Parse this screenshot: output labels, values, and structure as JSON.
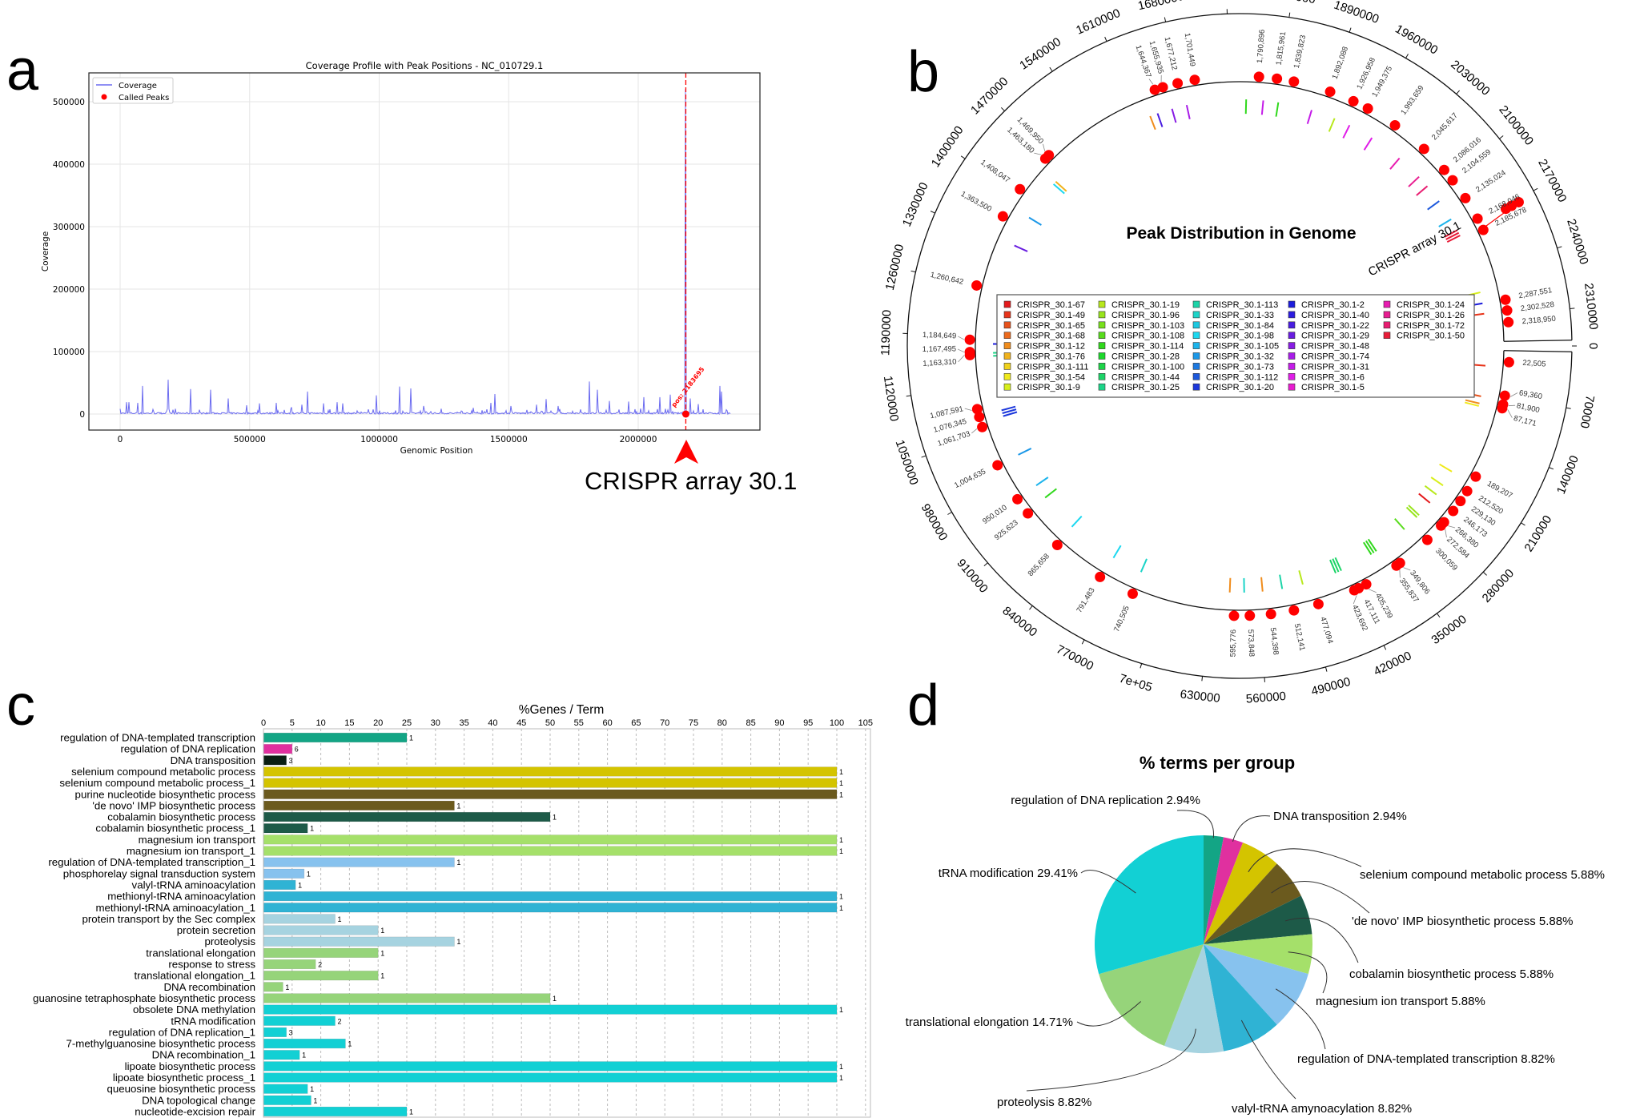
{
  "panels": {
    "a": "a",
    "b": "b",
    "c": "c",
    "d": "d"
  },
  "chart_data": [
    {
      "panel": "a",
      "type": "line",
      "title": "Coverage Profile with Peak Positions - NC_010729.1",
      "xlabel": "Genomic Position",
      "ylabel": "Coverage",
      "xlim": [
        -120000,
        2470000
      ],
      "ylim": [
        -26000,
        540000
      ],
      "xticks": [
        0,
        500000,
        1000000,
        1500000,
        2000000
      ],
      "yticks": [
        0,
        100000,
        200000,
        300000,
        400000,
        500000
      ],
      "grid": true,
      "legend": {
        "placement": "top-left",
        "entries": [
          "Coverage",
          "Called Peaks"
        ]
      },
      "colors": {
        "coverage": "#6b6bf0",
        "peaks": "#ff0000"
      },
      "genome_end": 2355000,
      "coverage_spikes": [
        [
          26000,
          19000
        ],
        [
          34000,
          19000
        ],
        [
          68000,
          18000
        ],
        [
          87000,
          45000
        ],
        [
          185000,
          55000
        ],
        [
          272000,
          40000
        ],
        [
          350000,
          39000
        ],
        [
          416000,
          25000
        ],
        [
          488000,
          14000
        ],
        [
          537000,
          17000
        ],
        [
          603000,
          18000
        ],
        [
          662000,
          11000
        ],
        [
          703000,
          15000
        ],
        [
          724000,
          36000
        ],
        [
          786000,
          17000
        ],
        [
          837000,
          19000
        ],
        [
          860000,
          17000
        ],
        [
          990000,
          30000
        ],
        [
          1079000,
          44000
        ],
        [
          1123000,
          41000
        ],
        [
          1172000,
          13000
        ],
        [
          1363000,
          10000
        ],
        [
          1431000,
          18000
        ],
        [
          1446000,
          32000
        ],
        [
          1510000,
          13000
        ],
        [
          1607000,
          15000
        ],
        [
          1643000,
          24000
        ],
        [
          1690000,
          13000
        ],
        [
          1811000,
          52000
        ],
        [
          1843000,
          39000
        ],
        [
          1890000,
          21000
        ],
        [
          1962000,
          20000
        ],
        [
          2021000,
          27000
        ],
        [
          2085000,
          27000
        ],
        [
          2125000,
          31000
        ],
        [
          2183695,
          520000
        ],
        [
          2200000,
          25000
        ],
        [
          2231000,
          16000
        ],
        [
          2316000,
          45000
        ],
        [
          2321000,
          36000
        ]
      ],
      "called_peaks": [
        [
          2183695,
          0
        ]
      ],
      "peak_annotation": "pos: 2183695",
      "arrow_annotation": "CRISPR array 30.1"
    },
    {
      "panel": "b",
      "type": "circular",
      "title": "Peak Distribution in Genome",
      "annotation": "CRISPR array 30.1",
      "crispr_array_pos": 2183695,
      "genome_length": 2352000,
      "axis_ticks": [
        "0",
        "70000",
        "140000",
        "210000",
        "280000",
        "350000",
        "420000",
        "490000",
        "560000",
        "630000",
        "7e+05",
        "770000",
        "840000",
        "910000",
        "980000",
        "1050000",
        "1120000",
        "1190000",
        "1260000",
        "1330000",
        "1400000",
        "1470000",
        "1540000",
        "1610000",
        "1680000",
        "1750000",
        "1820000",
        "1890000",
        "1960000",
        "2030000",
        "2100000",
        "2170000",
        "2240000",
        "2310000"
      ],
      "peak_color": "#ff0000",
      "peaks": [
        "22,505",
        "69,360",
        "81,900",
        "87,171",
        "189,207",
        "212,520",
        "229,130",
        "246,173",
        "266,380",
        "272,584",
        "300,059",
        "349,806",
        "355,837",
        "405,239",
        "417,111",
        "423,692",
        "477,094",
        "512,141",
        "544,398",
        "573,848",
        "595,776",
        "740,505",
        "791,483",
        "865,658",
        "925,623",
        "950,010",
        "1,004,635",
        "1,061,703",
        "1,076,345",
        "1,087,591",
        "1,163,310",
        "1,167,495",
        "1,184,649",
        "1,260,642",
        "1,363,500",
        "1,408,047",
        "1,463,180",
        "1,469,950",
        "1,644,367",
        "1,655,935",
        "1,677,212",
        "1,701,449",
        "1,790,896",
        "1,815,961",
        "1,839,823",
        "1,892,088",
        "1,926,958",
        "1,949,375",
        "1,993,659",
        "2,045,617",
        "2,086,016",
        "2,104,559",
        "2,135,024",
        "2,168,046",
        "2,185,678",
        "2,287,551",
        "2,302,528",
        "2,318,950"
      ],
      "legend": {
        "placement": "center",
        "items": [
          {
            "label": "CRISPR_30.1-67",
            "color": "#e41a1c"
          },
          {
            "label": "CRISPR_30.1-49",
            "color": "#e8341a"
          },
          {
            "label": "CRISPR_30.1-65",
            "color": "#e8521b"
          },
          {
            "label": "CRISPR_30.1-68",
            "color": "#ec6a1c"
          },
          {
            "label": "CRISPR_30.1-12",
            "color": "#f08c1c"
          },
          {
            "label": "CRISPR_30.1-76",
            "color": "#f0b21c"
          },
          {
            "label": "CRISPR_30.1-111",
            "color": "#f0d21c"
          },
          {
            "label": "CRISPR_30.1-54",
            "color": "#f0ea1c"
          },
          {
            "label": "CRISPR_30.1-9",
            "color": "#d8ef1c"
          },
          {
            "label": "CRISPR_30.1-19",
            "color": "#b8e81c"
          },
          {
            "label": "CRISPR_30.1-96",
            "color": "#98e41c"
          },
          {
            "label": "CRISPR_30.1-103",
            "color": "#78e01c"
          },
          {
            "label": "CRISPR_30.1-108",
            "color": "#58dc1c"
          },
          {
            "label": "CRISPR_30.1-114",
            "color": "#30d81c"
          },
          {
            "label": "CRISPR_30.1-28",
            "color": "#1cd82c"
          },
          {
            "label": "CRISPR_30.1-100",
            "color": "#1cd448"
          },
          {
            "label": "CRISPR_30.1-44",
            "color": "#1cd468"
          },
          {
            "label": "CRISPR_30.1-25",
            "color": "#1cd488"
          },
          {
            "label": "CRISPR_30.1-113",
            "color": "#1cd4a8"
          },
          {
            "label": "CRISPR_30.1-33",
            "color": "#1cd4c8"
          },
          {
            "label": "CRISPR_30.1-84",
            "color": "#1cc8e0"
          },
          {
            "label": "CRISPR_30.1-98",
            "color": "#1cd8f0"
          },
          {
            "label": "CRISPR_30.1-105",
            "color": "#1cb4ec"
          },
          {
            "label": "CRISPR_30.1-32",
            "color": "#1c98e8"
          },
          {
            "label": "CRISPR_30.1-73",
            "color": "#1c78e0"
          },
          {
            "label": "CRISPR_30.1-112",
            "color": "#1c58dc"
          },
          {
            "label": "CRISPR_30.1-20",
            "color": "#1c38dc"
          },
          {
            "label": "CRISPR_30.1-2",
            "color": "#1c1cdc"
          },
          {
            "label": "CRISPR_30.1-40",
            "color": "#2c1ce0"
          },
          {
            "label": "CRISPR_30.1-22",
            "color": "#481ce0"
          },
          {
            "label": "CRISPR_30.1-29",
            "color": "#681ce0"
          },
          {
            "label": "CRISPR_30.1-48",
            "color": "#881ce4"
          },
          {
            "label": "CRISPR_30.1-74",
            "color": "#a81ce8"
          },
          {
            "label": "CRISPR_30.1-31",
            "color": "#c41ce8"
          },
          {
            "label": "CRISPR_30.1-6",
            "color": "#e01ce8"
          },
          {
            "label": "CRISPR_30.1-5",
            "color": "#e81cd0"
          },
          {
            "label": "CRISPR_30.1-24",
            "color": "#e81cb0"
          },
          {
            "label": "CRISPR_30.1-26",
            "color": "#e81c90"
          },
          {
            "label": "CRISPR_30.1-72",
            "color": "#e81c70"
          },
          {
            "label": "CRISPR_30.1-50",
            "color": "#e81c38"
          }
        ]
      },
      "crispr_marks": [
        {
          "pos": 30000,
          "color": "#e8341a",
          "n": 1
        },
        {
          "pos": 77000,
          "color": "#e8521b",
          "n": 1
        },
        {
          "pos": 88000,
          "color": "#f08c1c",
          "n": 1
        },
        {
          "pos": 92000,
          "color": "#f0ea1c",
          "n": 1
        },
        {
          "pos": 200000,
          "color": "#f0ea1c",
          "n": 1
        },
        {
          "pos": 225000,
          "color": "#d8ef1c",
          "n": 1
        },
        {
          "pos": 242000,
          "color": "#b8e81c",
          "n": 1
        },
        {
          "pos": 258000,
          "color": "#e41a1c",
          "n": 1
        },
        {
          "pos": 283000,
          "color": "#98e41c",
          "n": 2
        },
        {
          "pos": 314000,
          "color": "#58dc1c",
          "n": 1
        },
        {
          "pos": 368000,
          "color": "#30d81c",
          "n": 3
        },
        {
          "pos": 429000,
          "color": "#1cd468",
          "n": 3
        },
        {
          "pos": 491000,
          "color": "#b8e81c",
          "n": 1
        },
        {
          "pos": 523000,
          "color": "#1cd4a8",
          "n": 1
        },
        {
          "pos": 553000,
          "color": "#f08c1c",
          "n": 1
        },
        {
          "pos": 581000,
          "color": "#1cd4c8",
          "n": 1
        },
        {
          "pos": 603000,
          "color": "#f08c1c",
          "n": 1
        },
        {
          "pos": 742000,
          "color": "#1cd4c8",
          "n": 1
        },
        {
          "pos": 789000,
          "color": "#1cd8f0",
          "n": 1
        },
        {
          "pos": 868000,
          "color": "#1cd8f0",
          "n": 1
        },
        {
          "pos": 928000,
          "color": "#30d81c",
          "n": 1
        },
        {
          "pos": 951000,
          "color": "#1cb4ec",
          "n": 1
        },
        {
          "pos": 1005000,
          "color": "#1c98e8",
          "n": 1
        },
        {
          "pos": 1068000,
          "color": "#1c38dc",
          "n": 3
        },
        {
          "pos": 1161000,
          "color": "#1cd488",
          "n": 2
        },
        {
          "pos": 1179000,
          "color": "#1c1cdc",
          "n": 1
        },
        {
          "pos": 1254000,
          "color": "#1cd448",
          "n": 1
        },
        {
          "pos": 1333000,
          "color": "#681ce0",
          "n": 1
        },
        {
          "pos": 1381000,
          "color": "#1c98e8",
          "n": 1
        },
        {
          "pos": 1444000,
          "color": "#1cd8f0",
          "n": 1
        },
        {
          "pos": 1449000,
          "color": "#f0b21c",
          "n": 1
        },
        {
          "pos": 1625000,
          "color": "#f08c1c",
          "n": 1
        },
        {
          "pos": 1637000,
          "color": "#481ce0",
          "n": 1
        },
        {
          "pos": 1660000,
          "color": "#881ce4",
          "n": 1
        },
        {
          "pos": 1683000,
          "color": "#a81ce8",
          "n": 1
        },
        {
          "pos": 1774000,
          "color": "#30d81c",
          "n": 1
        },
        {
          "pos": 1800000,
          "color": "#c41ce8",
          "n": 1
        },
        {
          "pos": 1823000,
          "color": "#30d81c",
          "n": 1
        },
        {
          "pos": 1875000,
          "color": "#c41ce8",
          "n": 1
        },
        {
          "pos": 1912000,
          "color": "#b8e81c",
          "n": 1
        },
        {
          "pos": 1937000,
          "color": "#e01ce8",
          "n": 1
        },
        {
          "pos": 1976000,
          "color": "#e01ce8",
          "n": 1
        },
        {
          "pos": 2028000,
          "color": "#e81cb0",
          "n": 1
        },
        {
          "pos": 2069000,
          "color": "#e81c90",
          "n": 1
        },
        {
          "pos": 2088000,
          "color": "#e81c70",
          "n": 1
        },
        {
          "pos": 2117000,
          "color": "#1c58dc",
          "n": 1
        },
        {
          "pos": 2150000,
          "color": "#1cb4ec",
          "n": 1
        },
        {
          "pos": 2169000,
          "color": "#e81c38",
          "n": 3
        },
        {
          "pos": 2270000,
          "color": "#d8ef1c",
          "n": 1
        },
        {
          "pos": 2287000,
          "color": "#1c1cdc",
          "n": 1
        },
        {
          "pos": 2303000,
          "color": "#e8341a",
          "n": 1
        }
      ]
    },
    {
      "panel": "c",
      "type": "bar",
      "orientation": "horizontal",
      "title": "%Genes / Term",
      "xlim": [
        0,
        105
      ],
      "xticks": [
        0,
        5,
        10,
        15,
        20,
        25,
        30,
        35,
        40,
        45,
        50,
        55,
        60,
        65,
        70,
        75,
        80,
        85,
        90,
        95,
        100,
        105
      ],
      "grid": true,
      "categories": [
        "regulation of DNA-templated transcription",
        "regulation of DNA replication",
        "DNA transposition",
        "selenium compound metabolic process",
        "selenium compound metabolic process_1",
        "purine nucleotide biosynthetic process",
        "'de novo' IMP biosynthetic process",
        "cobalamin biosynthetic process",
        "cobalamin biosynthetic process_1",
        "magnesium ion transport",
        "magnesium ion transport_1",
        "regulation of DNA-templated transcription_1",
        "phosphorelay signal transduction system",
        "valyl-tRNA aminoacylation",
        "methionyl-tRNA aminoacylation",
        "methionyl-tRNA aminoacylation_1",
        "protein transport by the Sec complex",
        "protein secretion",
        "proteolysis",
        "translational elongation",
        "response to stress",
        "translational elongation_1",
        "DNA recombination",
        "guanosine tetraphosphate biosynthetic process",
        "obsolete DNA methylation",
        "tRNA modification",
        "regulation of DNA replication_1",
        "7-methylguanosine biosynthetic process",
        "DNA recombination_1",
        "lipoate biosynthetic process",
        "lipoate biosynthetic process_1",
        "queuosine biosynthetic process",
        "DNA topological change",
        "nucleotide-excision repair"
      ],
      "values": [
        25,
        5,
        4,
        100,
        100,
        100,
        33.3,
        50,
        7.7,
        100,
        100,
        33.3,
        7.1,
        5.6,
        100,
        100,
        12.5,
        20,
        33.3,
        20,
        9.1,
        20,
        3.4,
        50,
        100,
        12.5,
        4,
        14.3,
        6.3,
        100,
        100,
        7.7,
        8.3,
        25
      ],
      "counts": [
        "1",
        "6",
        "3",
        "1",
        "1",
        "1",
        "1",
        "1",
        "1",
        "1",
        "1",
        "1",
        "1",
        "1",
        "1",
        "1",
        "1",
        "1",
        "1",
        "1",
        "2",
        "1",
        "1",
        "1",
        "1",
        "2",
        "3",
        "1",
        "1",
        "1",
        "1",
        "1",
        "1",
        "1"
      ],
      "colors": [
        "#13a585",
        "#e0309f",
        "#0a1f12",
        "#d4c400",
        "#d4c400",
        "#6b5a1e",
        "#6b5a1e",
        "#1d5a48",
        "#1d5a48",
        "#a5e06a",
        "#a5e06a",
        "#87c2ee",
        "#87c2ee",
        "#2fb3d4",
        "#2fb3d4",
        "#2fb3d4",
        "#a6d3e0",
        "#a6d3e0",
        "#a6d3e0",
        "#96d47a",
        "#96d47a",
        "#96d47a",
        "#96d47a",
        "#96d47a",
        "#12d0d4",
        "#12d0d4",
        "#12d0d4",
        "#12d0d4",
        "#12d0d4",
        "#12d0d4",
        "#12d0d4",
        "#12d0d4",
        "#12d0d4",
        "#12d0d4"
      ]
    },
    {
      "panel": "d",
      "type": "pie",
      "title": "% terms per group",
      "slices": [
        {
          "label": "regulation of DNA replication 2.94%",
          "value": 2.94,
          "color": "#13a585"
        },
        {
          "label": "DNA transposition 2.94%",
          "value": 2.94,
          "color": "#e0309f"
        },
        {
          "label": "selenium compound metabolic process 5.88%",
          "value": 5.88,
          "color": "#d4c400"
        },
        {
          "label": "'de novo' IMP biosynthetic process 5.88%",
          "value": 5.88,
          "color": "#6b5a1e"
        },
        {
          "label": "cobalamin biosynthetic process 5.88%",
          "value": 5.88,
          "color": "#1d5a48"
        },
        {
          "label": "magnesium ion transport 5.88%",
          "value": 5.88,
          "color": "#a5e06a"
        },
        {
          "label": "regulation of DNA-templated transcription 8.82%",
          "value": 8.82,
          "color": "#87c2ee"
        },
        {
          "label": "valyl-tRNA amynoacylation 8.82%",
          "value": 8.82,
          "color": "#2fb3d4"
        },
        {
          "label": "proteolysis 8.82%",
          "value": 8.82,
          "color": "#a6d3e0"
        },
        {
          "label": "translational elongation 14.71%",
          "value": 14.71,
          "color": "#96d47a"
        },
        {
          "label": "tRNA modification 29.41%",
          "value": 29.41,
          "color": "#12d0d4"
        }
      ]
    }
  ]
}
